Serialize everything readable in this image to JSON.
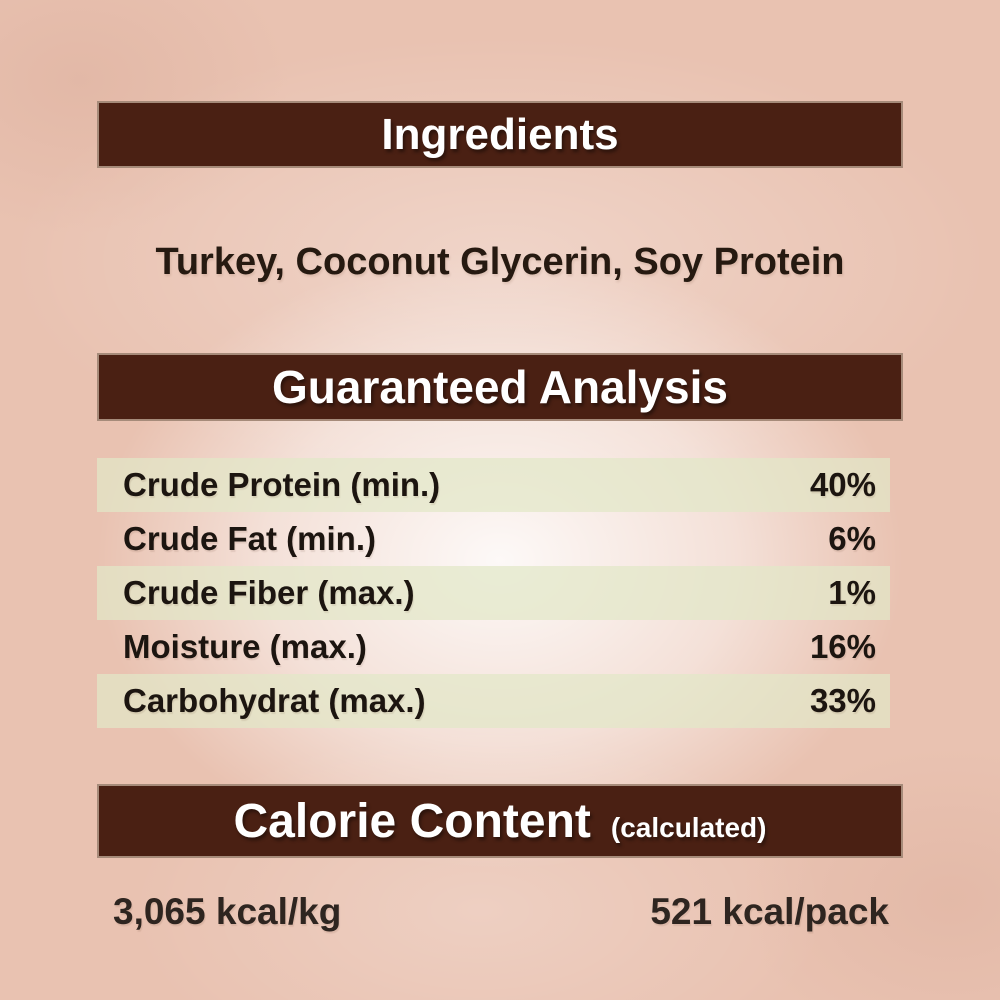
{
  "ingredients": {
    "header": "Ingredients",
    "text": "Turkey, Coconut Glycerin, Soy Protein"
  },
  "guaranteed_analysis": {
    "header": "Guaranteed Analysis",
    "rows": [
      {
        "name": "Crude Protein (min.)",
        "value": "40%"
      },
      {
        "name": "Crude Fat (min.)",
        "value": "6%"
      },
      {
        "name": "Crude Fiber (max.)",
        "value": "1%"
      },
      {
        "name": "Moisture (max.)",
        "value": "16%"
      },
      {
        "name": "Carbohydrat (max.)",
        "value": "33%"
      }
    ]
  },
  "calorie_content": {
    "header": "Calorie Content",
    "qualifier": "(calculated)",
    "per_kg": "3,065 kcal/kg",
    "per_pack": "521 kcal/pack"
  },
  "colors": {
    "header_bar_brown": "#4a2013",
    "background_peach": "#e9c2b1",
    "stripe_green": "#e2e8c8",
    "header_text": "#ffffff",
    "body_text": "#1c1510"
  }
}
